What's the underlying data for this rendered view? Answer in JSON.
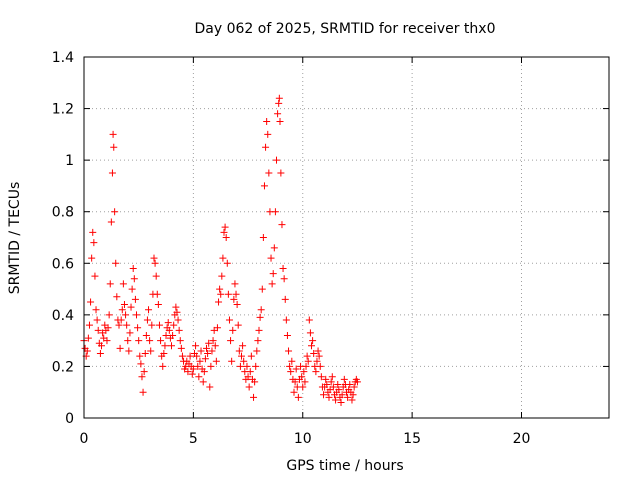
{
  "chart_data": {
    "type": "scatter",
    "title": "Day 062 of 2025, SRMTID for receiver thx0",
    "xlabel": "GPS time / hours",
    "ylabel": "SRMTID / TECUs",
    "xlim": [
      0,
      24
    ],
    "ylim": [
      0,
      1.4
    ],
    "xticks": [
      0,
      5,
      10,
      15,
      20
    ],
    "xtick_labels": [
      "0",
      "5",
      "10",
      "15",
      "20"
    ],
    "yticks": [
      0,
      0.2,
      0.4,
      0.6,
      0.8,
      1.0,
      1.2,
      1.4
    ],
    "ytick_labels": [
      "0",
      "0.2",
      "0.4",
      "0.6",
      "0.8",
      "1",
      "1.2",
      "1.4"
    ],
    "grid": true,
    "marker": "+",
    "color": "#ff0000",
    "series": [
      {
        "name": "SRMTID",
        "points": [
          [
            0.0,
            0.3
          ],
          [
            0.05,
            0.27
          ],
          [
            0.1,
            0.24
          ],
          [
            0.15,
            0.26
          ],
          [
            0.2,
            0.31
          ],
          [
            0.25,
            0.36
          ],
          [
            0.3,
            0.45
          ],
          [
            0.35,
            0.62
          ],
          [
            0.4,
            0.72
          ],
          [
            0.45,
            0.68
          ],
          [
            0.5,
            0.55
          ],
          [
            0.55,
            0.42
          ],
          [
            0.6,
            0.38
          ],
          [
            0.65,
            0.34
          ],
          [
            0.7,
            0.29
          ],
          [
            0.75,
            0.25
          ],
          [
            0.8,
            0.28
          ],
          [
            0.85,
            0.33
          ],
          [
            0.9,
            0.31
          ],
          [
            0.95,
            0.36
          ],
          [
            1.0,
            0.34
          ],
          [
            1.05,
            0.3
          ],
          [
            1.1,
            0.35
          ],
          [
            1.15,
            0.4
          ],
          [
            1.2,
            0.52
          ],
          [
            1.25,
            0.76
          ],
          [
            1.3,
            0.95
          ],
          [
            1.33,
            1.1
          ],
          [
            1.36,
            1.05
          ],
          [
            1.4,
            0.8
          ],
          [
            1.45,
            0.6
          ],
          [
            1.5,
            0.47
          ],
          [
            1.55,
            0.38
          ],
          [
            1.6,
            0.36
          ],
          [
            1.65,
            0.27
          ],
          [
            1.7,
            0.38
          ],
          [
            1.75,
            0.42
          ],
          [
            1.8,
            0.52
          ],
          [
            1.85,
            0.44
          ],
          [
            1.9,
            0.4
          ],
          [
            1.95,
            0.36
          ],
          [
            2.0,
            0.3
          ],
          [
            2.05,
            0.26
          ],
          [
            2.1,
            0.33
          ],
          [
            2.15,
            0.43
          ],
          [
            2.2,
            0.5
          ],
          [
            2.25,
            0.58
          ],
          [
            2.3,
            0.54
          ],
          [
            2.35,
            0.46
          ],
          [
            2.4,
            0.4
          ],
          [
            2.45,
            0.35
          ],
          [
            2.5,
            0.3
          ],
          [
            2.55,
            0.24
          ],
          [
            2.6,
            0.21
          ],
          [
            2.65,
            0.16
          ],
          [
            2.7,
            0.1
          ],
          [
            2.75,
            0.18
          ],
          [
            2.8,
            0.25
          ],
          [
            2.85,
            0.32
          ],
          [
            2.9,
            0.38
          ],
          [
            2.95,
            0.42
          ],
          [
            3.0,
            0.3
          ],
          [
            3.05,
            0.26
          ],
          [
            3.1,
            0.36
          ],
          [
            3.15,
            0.48
          ],
          [
            3.2,
            0.62
          ],
          [
            3.25,
            0.6
          ],
          [
            3.3,
            0.55
          ],
          [
            3.35,
            0.48
          ],
          [
            3.4,
            0.44
          ],
          [
            3.45,
            0.36
          ],
          [
            3.5,
            0.3
          ],
          [
            3.55,
            0.24
          ],
          [
            3.6,
            0.2
          ],
          [
            3.65,
            0.25
          ],
          [
            3.7,
            0.28
          ],
          [
            3.75,
            0.32
          ],
          [
            3.8,
            0.35
          ],
          [
            3.85,
            0.37
          ],
          [
            3.9,
            0.34
          ],
          [
            3.95,
            0.31
          ],
          [
            4.0,
            0.28
          ],
          [
            4.05,
            0.32
          ],
          [
            4.1,
            0.36
          ],
          [
            4.15,
            0.4
          ],
          [
            4.2,
            0.43
          ],
          [
            4.25,
            0.41
          ],
          [
            4.3,
            0.38
          ],
          [
            4.35,
            0.34
          ],
          [
            4.4,
            0.3
          ],
          [
            4.45,
            0.27
          ],
          [
            4.5,
            0.24
          ],
          [
            4.55,
            0.22
          ],
          [
            4.6,
            0.19
          ],
          [
            4.65,
            0.2
          ],
          [
            4.7,
            0.22
          ],
          [
            4.75,
            0.18
          ],
          [
            4.8,
            0.21
          ],
          [
            4.85,
            0.24
          ],
          [
            4.9,
            0.2
          ],
          [
            4.95,
            0.17
          ],
          [
            5.0,
            0.19
          ],
          [
            5.05,
            0.25
          ],
          [
            5.1,
            0.28
          ],
          [
            5.15,
            0.24
          ],
          [
            5.2,
            0.2
          ],
          [
            5.25,
            0.16
          ],
          [
            5.3,
            0.22
          ],
          [
            5.35,
            0.26
          ],
          [
            5.4,
            0.19
          ],
          [
            5.45,
            0.14
          ],
          [
            5.5,
            0.18
          ],
          [
            5.55,
            0.23
          ],
          [
            5.6,
            0.27
          ],
          [
            5.65,
            0.25
          ],
          [
            5.7,
            0.29
          ],
          [
            5.75,
            0.12
          ],
          [
            5.8,
            0.2
          ],
          [
            5.85,
            0.26
          ],
          [
            5.9,
            0.3
          ],
          [
            5.95,
            0.34
          ],
          [
            6.0,
            0.28
          ],
          [
            6.05,
            0.22
          ],
          [
            6.1,
            0.35
          ],
          [
            6.15,
            0.45
          ],
          [
            6.2,
            0.5
          ],
          [
            6.25,
            0.48
          ],
          [
            6.3,
            0.55
          ],
          [
            6.35,
            0.62
          ],
          [
            6.4,
            0.72
          ],
          [
            6.45,
            0.74
          ],
          [
            6.5,
            0.7
          ],
          [
            6.55,
            0.6
          ],
          [
            6.6,
            0.48
          ],
          [
            6.65,
            0.38
          ],
          [
            6.7,
            0.3
          ],
          [
            6.75,
            0.22
          ],
          [
            6.8,
            0.34
          ],
          [
            6.85,
            0.46
          ],
          [
            6.9,
            0.52
          ],
          [
            6.95,
            0.48
          ],
          [
            7.0,
            0.44
          ],
          [
            7.05,
            0.36
          ],
          [
            7.1,
            0.26
          ],
          [
            7.15,
            0.2
          ],
          [
            7.2,
            0.24
          ],
          [
            7.25,
            0.28
          ],
          [
            7.3,
            0.22
          ],
          [
            7.35,
            0.18
          ],
          [
            7.4,
            0.15
          ],
          [
            7.45,
            0.2
          ],
          [
            7.5,
            0.16
          ],
          [
            7.55,
            0.12
          ],
          [
            7.6,
            0.18
          ],
          [
            7.65,
            0.24
          ],
          [
            7.7,
            0.15
          ],
          [
            7.75,
            0.08
          ],
          [
            7.8,
            0.14
          ],
          [
            7.85,
            0.2
          ],
          [
            7.9,
            0.26
          ],
          [
            7.95,
            0.3
          ],
          [
            8.0,
            0.34
          ],
          [
            8.05,
            0.39
          ],
          [
            8.1,
            0.42
          ],
          [
            8.15,
            0.5
          ],
          [
            8.2,
            0.7
          ],
          [
            8.25,
            0.9
          ],
          [
            8.3,
            1.05
          ],
          [
            8.35,
            1.15
          ],
          [
            8.4,
            1.1
          ],
          [
            8.45,
            0.95
          ],
          [
            8.5,
            0.8
          ],
          [
            8.55,
            0.62
          ],
          [
            8.6,
            0.52
          ],
          [
            8.65,
            0.56
          ],
          [
            8.7,
            0.66
          ],
          [
            8.75,
            0.8
          ],
          [
            8.8,
            1.0
          ],
          [
            8.85,
            1.18
          ],
          [
            8.9,
            1.22
          ],
          [
            8.93,
            1.24
          ],
          [
            8.96,
            1.15
          ],
          [
            9.0,
            0.95
          ],
          [
            9.05,
            0.75
          ],
          [
            9.1,
            0.58
          ],
          [
            9.15,
            0.54
          ],
          [
            9.2,
            0.46
          ],
          [
            9.25,
            0.38
          ],
          [
            9.3,
            0.32
          ],
          [
            9.35,
            0.26
          ],
          [
            9.4,
            0.2
          ],
          [
            9.45,
            0.18
          ],
          [
            9.5,
            0.22
          ],
          [
            9.55,
            0.15
          ],
          [
            9.6,
            0.1
          ],
          [
            9.65,
            0.14
          ],
          [
            9.7,
            0.19
          ],
          [
            9.75,
            0.12
          ],
          [
            9.8,
            0.08
          ],
          [
            9.85,
            0.15
          ],
          [
            9.9,
            0.2
          ],
          [
            9.95,
            0.16
          ],
          [
            10.0,
            0.12
          ],
          [
            10.05,
            0.18
          ],
          [
            10.1,
            0.14
          ],
          [
            10.15,
            0.2
          ],
          [
            10.2,
            0.24
          ],
          [
            10.25,
            0.22
          ],
          [
            10.3,
            0.38
          ],
          [
            10.35,
            0.33
          ],
          [
            10.4,
            0.28
          ],
          [
            10.45,
            0.3
          ],
          [
            10.5,
            0.25
          ],
          [
            10.55,
            0.2
          ],
          [
            10.6,
            0.18
          ],
          [
            10.65,
            0.22
          ],
          [
            10.7,
            0.26
          ],
          [
            10.75,
            0.24
          ],
          [
            10.8,
            0.2
          ],
          [
            10.85,
            0.16
          ],
          [
            10.9,
            0.12
          ],
          [
            10.95,
            0.09
          ],
          [
            11.0,
            0.12
          ],
          [
            11.05,
            0.15
          ],
          [
            11.1,
            0.13
          ],
          [
            11.15,
            0.1
          ],
          [
            11.2,
            0.08
          ],
          [
            11.25,
            0.11
          ],
          [
            11.3,
            0.14
          ],
          [
            11.35,
            0.16
          ],
          [
            11.4,
            0.12
          ],
          [
            11.45,
            0.09
          ],
          [
            11.5,
            0.07
          ],
          [
            11.55,
            0.1
          ],
          [
            11.6,
            0.13
          ],
          [
            11.65,
            0.11
          ],
          [
            11.7,
            0.08
          ],
          [
            11.75,
            0.06
          ],
          [
            11.8,
            0.09
          ],
          [
            11.85,
            0.12
          ],
          [
            11.9,
            0.15
          ],
          [
            11.95,
            0.13
          ],
          [
            12.0,
            0.1
          ],
          [
            12.05,
            0.08
          ],
          [
            12.1,
            0.11
          ],
          [
            12.15,
            0.13
          ],
          [
            12.2,
            0.1
          ],
          [
            12.25,
            0.07
          ],
          [
            12.3,
            0.09
          ],
          [
            12.35,
            0.12
          ],
          [
            12.4,
            0.14
          ],
          [
            12.45,
            0.15
          ],
          [
            12.5,
            0.14
          ]
        ]
      }
    ]
  }
}
